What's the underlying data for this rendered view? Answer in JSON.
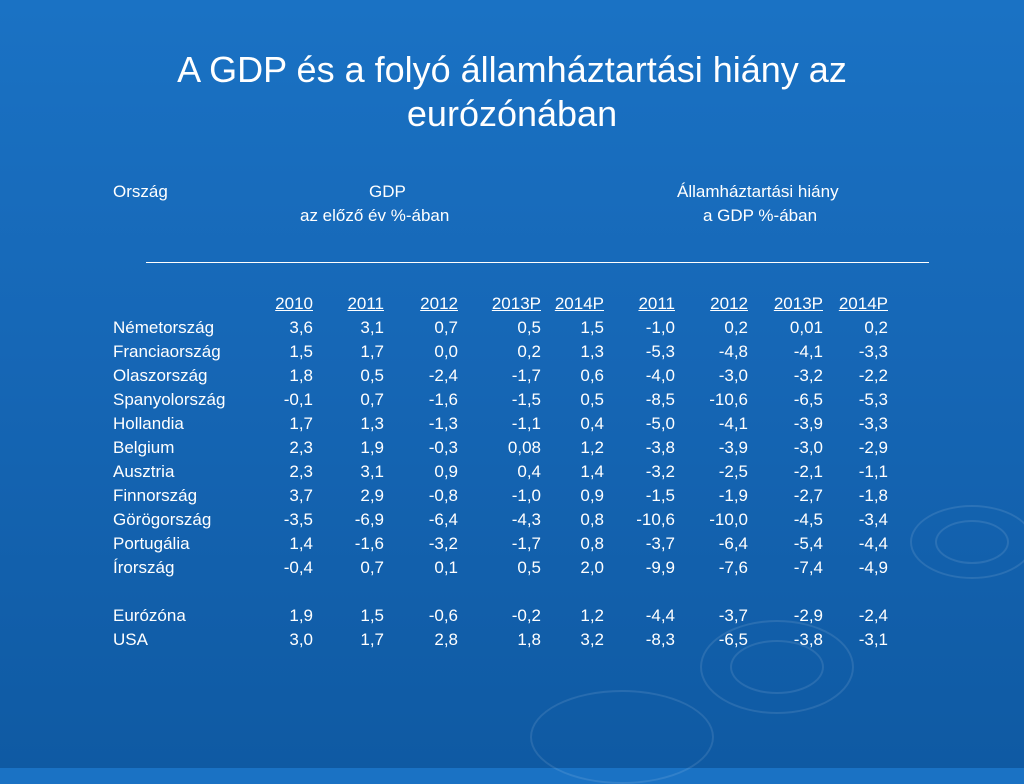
{
  "slide": {
    "title_line1": "A GDP és a folyó államháztartási hiány az",
    "title_line2": "eurózónában"
  },
  "headers": {
    "country": "Ország",
    "gdp": "GDP",
    "gdp_sub": "az előző év %-ában",
    "deficit": "Államháztartási hiány",
    "deficit_sub": "a GDP %-ában"
  },
  "years": [
    "2010",
    "2011",
    "2012",
    "2013P",
    "2014P",
    "2011",
    "2012",
    "2013P",
    "2014P"
  ],
  "rows": [
    {
      "country": "Németország",
      "values": [
        "3,6",
        "3,1",
        "0,7",
        "0,5",
        "1,5",
        "-1,0",
        "0,2",
        "0,01",
        "0,2"
      ]
    },
    {
      "country": "Franciaország",
      "values": [
        "1,5",
        "1,7",
        "0,0",
        "0,2",
        "1,3",
        "-5,3",
        "-4,8",
        "-4,1",
        "-3,3"
      ]
    },
    {
      "country": "Olaszország",
      "values": [
        "1,8",
        "0,5",
        "-2,4",
        "-1,7",
        "0,6",
        "-4,0",
        "-3,0",
        "-3,2",
        "-2,2"
      ]
    },
    {
      "country": "Spanyolország",
      "values": [
        "-0,1",
        "0,7",
        "-1,6",
        "-1,5",
        "0,5",
        "-8,5",
        "-10,6",
        "-6,5",
        "-5,3"
      ]
    },
    {
      "country": "Hollandia",
      "values": [
        "1,7",
        "1,3",
        "-1,3",
        "-1,1",
        "0,4",
        "-5,0",
        "-4,1",
        "-3,9",
        "-3,3"
      ]
    },
    {
      "country": "Belgium",
      "values": [
        "2,3",
        "1,9",
        "-0,3",
        "0,08",
        "1,2",
        "-3,8",
        "-3,9",
        "-3,0",
        "-2,9"
      ]
    },
    {
      "country": "Ausztria",
      "values": [
        "2,3",
        "3,1",
        "0,9",
        "0,4",
        "1,4",
        "-3,2",
        "-2,5",
        "-2,1",
        "-1,1"
      ]
    },
    {
      "country": "Finnország",
      "values": [
        "3,7",
        "2,9",
        "-0,8",
        "-1,0",
        "0,9",
        "-1,5",
        "-1,9",
        "-2,7",
        "-1,8"
      ]
    },
    {
      "country": "Görögország",
      "values": [
        "-3,5",
        "-6,9",
        "-6,4",
        "-4,3",
        "0,8",
        "-10,6",
        "-10,0",
        "-4,5",
        "-3,4"
      ]
    },
    {
      "country": "Portugália",
      "values": [
        "1,4",
        "-1,6",
        "-3,2",
        "-1,7",
        "0,8",
        "-3,7",
        "-6,4",
        "-5,4",
        "-4,4"
      ]
    },
    {
      "country": "Írország",
      "values": [
        "-0,4",
        "0,7",
        "0,1",
        "0,5",
        "2,0",
        "-9,9",
        "-7,6",
        "-7,4",
        "-4,9"
      ]
    },
    {
      "country": "Eurózóna",
      "values": [
        "1,9",
        "1,5",
        "-0,6",
        "-0,2",
        "1,2",
        "-4,4",
        "-3,7",
        "-2,9",
        "-2,4"
      ]
    },
    {
      "country": "USA",
      "values": [
        "3,0",
        "1,7",
        "2,8",
        "1,8",
        "3,2",
        "-8,3",
        "-6,5",
        "-3,8",
        "-3,1"
      ]
    }
  ]
}
